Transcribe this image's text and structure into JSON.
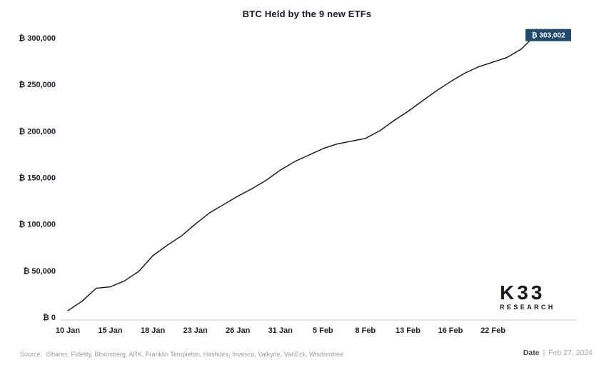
{
  "chart_data": {
    "type": "line",
    "title": "BTC Held by the 9 new ETFs",
    "x": [
      "10 Jan",
      "11 Jan",
      "12 Jan",
      "15 Jan",
      "16 Jan",
      "17 Jan",
      "18 Jan",
      "19 Jan",
      "22 Jan",
      "23 Jan",
      "24 Jan",
      "25 Jan",
      "26 Jan",
      "29 Jan",
      "30 Jan",
      "31 Jan",
      "1 Feb",
      "2 Feb",
      "5 Feb",
      "6 Feb",
      "7 Feb",
      "8 Feb",
      "9 Feb",
      "12 Feb",
      "13 Feb",
      "14 Feb",
      "15 Feb",
      "16 Feb",
      "20 Feb",
      "21 Feb",
      "22 Feb",
      "23 Feb",
      "26 Feb",
      "27 Feb"
    ],
    "values": [
      7000,
      17000,
      31000,
      32500,
      39000,
      49000,
      66000,
      77000,
      87000,
      100000,
      112000,
      121000,
      130000,
      138000,
      147000,
      158000,
      167000,
      174000,
      181000,
      186000,
      189000,
      192000,
      200000,
      211000,
      221000,
      232000,
      243000,
      253000,
      262000,
      269000,
      274000,
      279000,
      288000,
      303002
    ],
    "x_ticks": [
      "10 Jan",
      "15 Jan",
      "18 Jan",
      "23 Jan",
      "26 Jan",
      "31 Jan",
      "5 Feb",
      "8 Feb",
      "13 Feb",
      "16 Feb",
      "22 Feb"
    ],
    "y_ticks": [
      {
        "value": 0,
        "label": "₿ 0"
      },
      {
        "value": 50000,
        "label": "₿ 50,000"
      },
      {
        "value": 100000,
        "label": "₿ 100,000"
      },
      {
        "value": 150000,
        "label": "₿ 150,000"
      },
      {
        "value": 200000,
        "label": "₿ 200,000"
      },
      {
        "value": 250000,
        "label": "₿ 250,000"
      },
      {
        "value": 300000,
        "label": "₿ 300,000"
      }
    ],
    "ylim": [
      0,
      307000
    ],
    "grid": false,
    "legend": "none",
    "line_color": "#10131f",
    "axis_color": "#cccccc",
    "label_color": "#1c1f2b",
    "annotation": {
      "text": "₿ 303,002",
      "value": 303002,
      "x": "27 Feb",
      "bg": "#1d4a6e",
      "fg": "#ffffff"
    }
  },
  "logo": {
    "line1": "K33",
    "line2": "RESEARCH"
  },
  "footer": {
    "source_label": "Source:",
    "source_value": "iShares, Fidelity, Bloomberg, ARK, Franklin Templeton, Hashdex, Invesco, Valkyrie, VanEck, Wisdomtree",
    "date_label": "Date",
    "date_separator": "|",
    "date_value": "Feb 27, 2024"
  }
}
